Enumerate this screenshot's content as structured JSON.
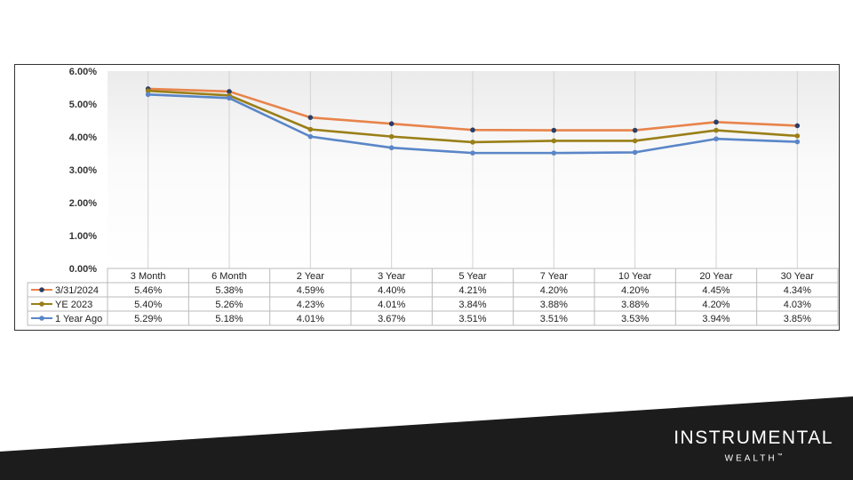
{
  "chart_data": {
    "type": "line",
    "categories": [
      "3 Month",
      "6 Month",
      "2 Year",
      "3 Year",
      "5 Year",
      "7 Year",
      "10 Year",
      "20 Year",
      "30 Year"
    ],
    "y_ticks": [
      "0.00%",
      "1.00%",
      "2.00%",
      "3.00%",
      "4.00%",
      "5.00%",
      "6.00%"
    ],
    "ylim": [
      0,
      6
    ],
    "y_unit": "%",
    "grid": "vertical",
    "legend_placement": "table-left",
    "series": [
      {
        "name": "3/31/2024",
        "color": "#e8834a",
        "values": [
          5.46,
          5.38,
          4.59,
          4.4,
          4.21,
          4.2,
          4.2,
          4.45,
          4.34
        ],
        "labels": [
          "5.46%",
          "5.38%",
          "4.59%",
          "4.40%",
          "4.21%",
          "4.20%",
          "4.20%",
          "4.45%",
          "4.34%"
        ]
      },
      {
        "name": "YE 2023",
        "color": "#9a7f18",
        "values": [
          5.4,
          5.26,
          4.23,
          4.01,
          3.84,
          3.88,
          3.88,
          4.2,
          4.03
        ],
        "labels": [
          "5.40%",
          "5.26%",
          "4.23%",
          "4.01%",
          "3.84%",
          "3.88%",
          "3.88%",
          "4.20%",
          "4.03%"
        ]
      },
      {
        "name": "1 Year Ago",
        "color": "#5a86c8",
        "values": [
          5.29,
          5.18,
          4.01,
          3.67,
          3.51,
          3.51,
          3.53,
          3.94,
          3.85
        ],
        "labels": [
          "5.29%",
          "5.18%",
          "4.01%",
          "3.67%",
          "3.51%",
          "3.51%",
          "3.53%",
          "3.94%",
          "3.85%"
        ]
      }
    ],
    "marker_color": "#2b3f66"
  },
  "brand": {
    "name": "INSTRUMENTAL",
    "sub": "WEALTH",
    "mark": "™",
    "band_color": "#1c1c1c"
  }
}
